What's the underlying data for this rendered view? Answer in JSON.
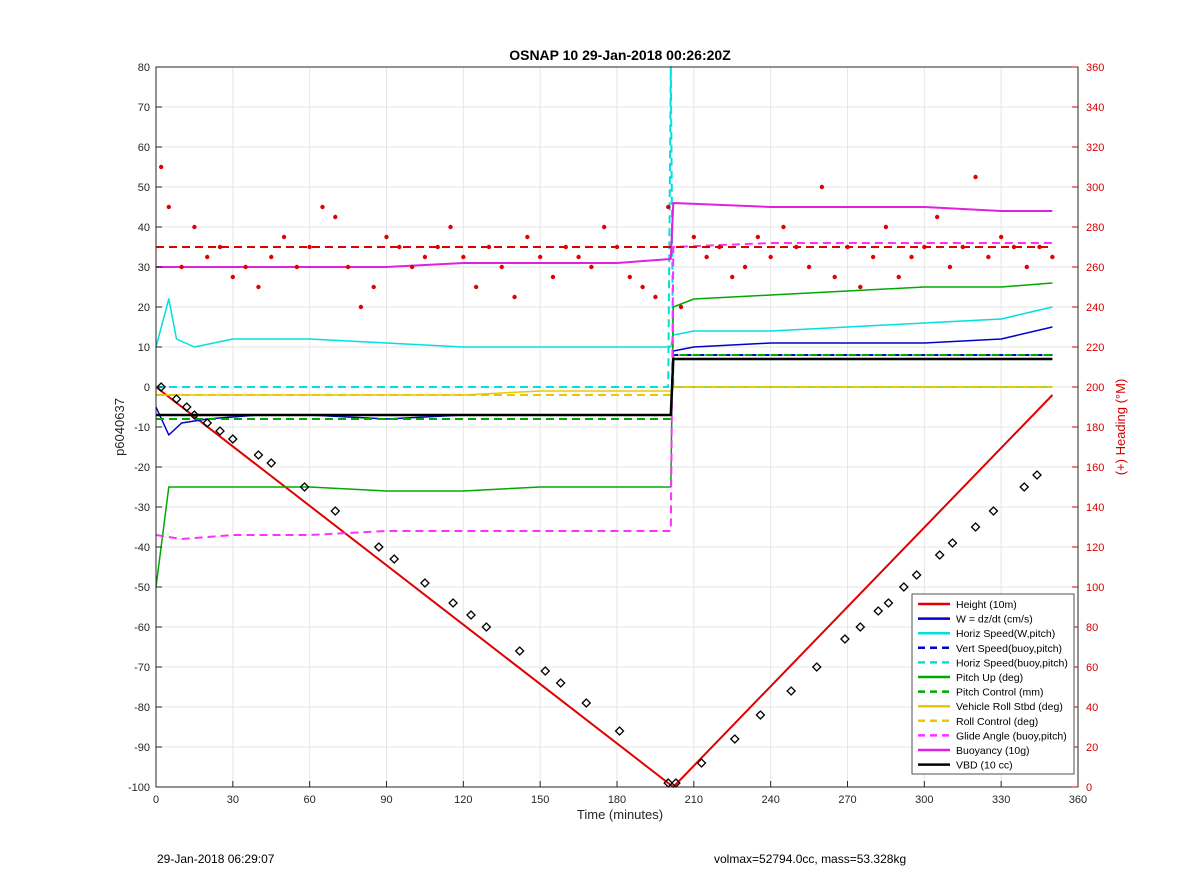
{
  "chart_data": {
    "type": "line",
    "title": "OSNAP 10 29-Jan-2018 00:26:20Z",
    "xlabel": "Time (minutes)",
    "ylabel": "p6040637",
    "y2label": "(+) Heading (°M)",
    "xlim": [
      0,
      360
    ],
    "ylim": [
      -100,
      80
    ],
    "y2lim": [
      0,
      360
    ],
    "xticks": [
      0,
      30,
      60,
      90,
      120,
      150,
      180,
      210,
      240,
      270,
      300,
      330,
      360
    ],
    "yticks": [
      -100,
      -90,
      -80,
      -70,
      -60,
      -50,
      -40,
      -30,
      -20,
      -10,
      0,
      10,
      20,
      30,
      40,
      50,
      60,
      70,
      80
    ],
    "y2ticks": [
      0,
      20,
      40,
      60,
      80,
      100,
      120,
      140,
      160,
      180,
      200,
      220,
      240,
      260,
      280,
      300,
      320,
      340,
      360
    ],
    "grid": true,
    "legend_position": "bottom-right",
    "series": [
      {
        "name": "Height (10m)",
        "color": "#e00000",
        "style": "solid",
        "width": 2,
        "x": [
          0,
          202,
          350
        ],
        "y": [
          0,
          -100,
          -2
        ]
      },
      {
        "name": "W = dz/dt (cm/s)",
        "color": "#0000c8",
        "style": "solid",
        "width": 1.5,
        "x": [
          0,
          5,
          10,
          20,
          40,
          60,
          90,
          120,
          150,
          180,
          201,
          202,
          210,
          240,
          270,
          300,
          330,
          350
        ],
        "y": [
          -5,
          -12,
          -9,
          -8,
          -7,
          -7,
          -8,
          -7,
          -7,
          -7,
          -7,
          9,
          10,
          11,
          11,
          11,
          12,
          15
        ]
      },
      {
        "name": "Horiz Speed(W,pitch)",
        "color": "#00e0e0",
        "style": "solid",
        "width": 1.5,
        "x": [
          0,
          5,
          8,
          15,
          30,
          60,
          90,
          120,
          150,
          180,
          201,
          202,
          210,
          240,
          270,
          300,
          330,
          350
        ],
        "y": [
          10,
          22,
          12,
          10,
          12,
          12,
          11,
          10,
          10,
          10,
          10,
          13,
          14,
          14,
          15,
          16,
          17,
          20
        ]
      },
      {
        "name": "Vert Speed(buoy,pitch)",
        "color": "#0000c8",
        "style": "dashed",
        "width": 2,
        "x": [
          0,
          201,
          202,
          350
        ],
        "y": [
          -7,
          -7,
          8,
          8
        ]
      },
      {
        "name": "Horiz Speed(buoy,pitch)",
        "color": "#00e0e0",
        "style": "dashed",
        "width": 2,
        "x": [
          0,
          200,
          201,
          202,
          203,
          350
        ],
        "y": [
          0,
          0,
          80,
          0,
          0,
          0
        ]
      },
      {
        "name": "Pitch Up (deg)",
        "color": "#00aa00",
        "style": "solid",
        "width": 1.5,
        "x": [
          0,
          5,
          30,
          60,
          90,
          120,
          150,
          180,
          201,
          202,
          210,
          240,
          270,
          300,
          330,
          350
        ],
        "y": [
          -50,
          -25,
          -25,
          -25,
          -26,
          -26,
          -25,
          -25,
          -25,
          20,
          22,
          23,
          24,
          25,
          25,
          26
        ]
      },
      {
        "name": "Pitch Control (mm)",
        "color": "#00aa00",
        "style": "dashed",
        "width": 2,
        "x": [
          0,
          201,
          202,
          350
        ],
        "y": [
          -8,
          -8,
          8,
          8
        ]
      },
      {
        "name": "Vehicle Roll Stbd (deg)",
        "color": "#e8c800",
        "style": "solid",
        "width": 1.5,
        "x": [
          0,
          30,
          60,
          90,
          120,
          150,
          180,
          201,
          202,
          240,
          270,
          300,
          330,
          350
        ],
        "y": [
          -2,
          -2,
          -2,
          -2,
          -2,
          -1,
          -1,
          -1,
          0,
          0,
          0,
          0,
          0,
          0
        ]
      },
      {
        "name": "Roll Control (deg)",
        "color": "#e8c800",
        "style": "dashed",
        "width": 2,
        "x": [
          0,
          201,
          202,
          350
        ],
        "y": [
          -2,
          -2,
          0,
          0
        ]
      },
      {
        "name": "Glide Angle (buoy,pitch)",
        "color": "#ff30ff",
        "style": "dashed",
        "width": 2,
        "x": [
          0,
          10,
          30,
          60,
          90,
          120,
          150,
          180,
          201,
          202,
          240,
          270,
          300,
          330,
          350
        ],
        "y": [
          -37,
          -38,
          -37,
          -37,
          -36,
          -36,
          -36,
          -36,
          -36,
          35,
          36,
          36,
          36,
          36,
          36
        ]
      },
      {
        "name": "Buoyancy (10g)",
        "color": "#e020e0",
        "style": "solid",
        "width": 2,
        "x": [
          0,
          30,
          60,
          90,
          120,
          150,
          180,
          201,
          202,
          240,
          270,
          300,
          330,
          350
        ],
        "y": [
          30,
          30,
          30,
          30,
          31,
          31,
          31,
          32,
          46,
          45,
          45,
          45,
          44,
          44
        ]
      },
      {
        "name": "VBD (10 cc)",
        "color": "#000000",
        "style": "solid",
        "width": 2.5,
        "x": [
          0,
          201,
          202,
          350
        ],
        "y": [
          -7,
          -7,
          7,
          7
        ]
      }
    ],
    "heading": {
      "axis": "right",
      "color": "#e00000",
      "style": "dots",
      "mean": 270,
      "x": [
        2,
        5,
        10,
        15,
        20,
        25,
        30,
        35,
        40,
        45,
        50,
        55,
        60,
        65,
        70,
        75,
        80,
        85,
        90,
        95,
        100,
        105,
        110,
        115,
        120,
        125,
        130,
        135,
        140,
        145,
        150,
        155,
        160,
        165,
        170,
        175,
        180,
        185,
        190,
        195,
        200,
        205,
        210,
        215,
        220,
        225,
        230,
        235,
        240,
        245,
        250,
        255,
        260,
        265,
        270,
        275,
        280,
        285,
        290,
        295,
        300,
        305,
        310,
        315,
        320,
        325,
        330,
        335,
        340,
        345,
        350
      ],
      "y": [
        310,
        290,
        260,
        280,
        265,
        270,
        255,
        260,
        250,
        265,
        275,
        260,
        270,
        290,
        285,
        260,
        240,
        250,
        275,
        270,
        260,
        265,
        270,
        280,
        265,
        250,
        270,
        260,
        245,
        275,
        265,
        255,
        270,
        265,
        260,
        280,
        270,
        255,
        250,
        245,
        290,
        240,
        275,
        265,
        270,
        255,
        260,
        275,
        265,
        280,
        270,
        260,
        300,
        255,
        270,
        250,
        265,
        280,
        255,
        265,
        270,
        285,
        260,
        270,
        305,
        265,
        275,
        270,
        260,
        270,
        265
      ]
    },
    "markers": {
      "color": "#000000",
      "description": "diamond/triangle markers along Height",
      "x": [
        2,
        8,
        12,
        15,
        20,
        25,
        30,
        40,
        45,
        58,
        70,
        87,
        93,
        105,
        116,
        123,
        129,
        142,
        152,
        158,
        168,
        181,
        200,
        203,
        213,
        226,
        236,
        248,
        258,
        269,
        275,
        282,
        286,
        292,
        297,
        306,
        311,
        320,
        327,
        339,
        344
      ],
      "y": [
        0,
        -3,
        -5,
        -7,
        -9,
        -11,
        -13,
        -17,
        -19,
        -25,
        -31,
        -40,
        -43,
        -49,
        -54,
        -57,
        -60,
        -66,
        -71,
        -74,
        -79,
        -86,
        -99,
        -99,
        -94,
        -88,
        -82,
        -76,
        -70,
        -63,
        -60,
        -56,
        -54,
        -50,
        -47,
        -42,
        -39,
        -35,
        -31,
        -25,
        -22
      ]
    }
  },
  "footer": {
    "left": "29-Jan-2018 06:29:07",
    "right": "volmax=52794.0cc, mass=53.328kg"
  }
}
